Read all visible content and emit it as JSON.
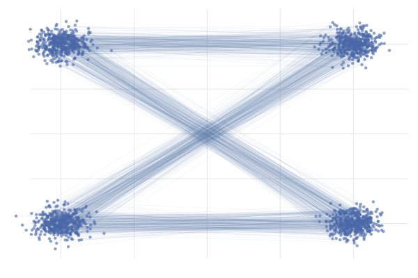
{
  "chart_data": {
    "type": "scatter",
    "title": "",
    "xlabel": "",
    "ylabel": "",
    "xlim": [
      -0.7,
      4.75
    ],
    "ylim": [
      -0.78,
      4.8
    ],
    "grid": true,
    "x_gridlines": [
      0,
      1,
      2,
      3,
      4
    ],
    "y_gridlines": [
      0,
      1,
      2,
      3,
      4
    ],
    "point_color": "#4a68a8",
    "clusters": [
      {
        "cx": 0.0,
        "cy": 4.0,
        "spread": 0.17,
        "count": 450
      },
      {
        "cx": 4.0,
        "cy": 4.0,
        "spread": 0.17,
        "count": 450
      },
      {
        "cx": 0.0,
        "cy": 0.0,
        "spread": 0.17,
        "count": 450
      },
      {
        "cx": 4.0,
        "cy": 0.0,
        "spread": 0.17,
        "count": 450
      }
    ],
    "links": [
      {
        "from": 0,
        "to": 1,
        "count": 220
      },
      {
        "from": 0,
        "to": 3,
        "count": 260
      },
      {
        "from": 2,
        "to": 1,
        "count": 260
      },
      {
        "from": 2,
        "to": 3,
        "count": 220
      }
    ]
  }
}
